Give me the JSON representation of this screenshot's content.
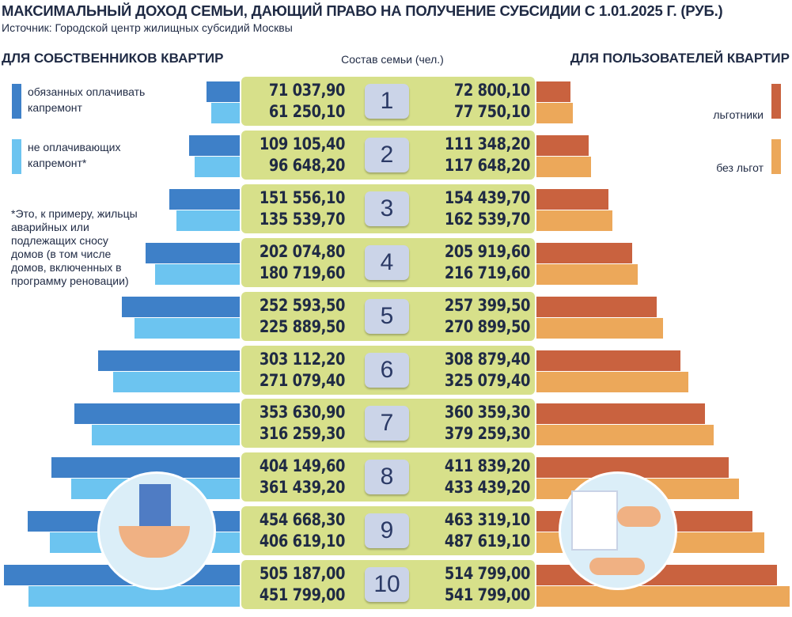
{
  "chart_data": {
    "type": "bar",
    "title": "МАКСИМАЛЬНЫЙ ДОХОД СЕМЬИ, ДАЮЩИЙ ПРАВО НА ПОЛУЧЕНИЕ СУБСИДИИ С 1.01.2025 Г. (РУБ.)",
    "subtitle": "Источник: Городской центр жилищных субсидий Москвы",
    "left_heading": "ДЛЯ СОБСТВЕННИКОВ КВАРТИР",
    "center_heading": "Состав семьи (чел.)",
    "right_heading": "ДЛЯ ПОЛЬЗОВАТЕЛЕЙ КВАРТИР",
    "note": "*Это, к примеру, жильцы аварийных или подлежащих сносу домов (в том числе домов, включенных в программу реновации)",
    "categories": [
      "1",
      "2",
      "3",
      "4",
      "5",
      "6",
      "7",
      "8",
      "9",
      "10"
    ],
    "series": [
      {
        "name": "обязанных оплачивать капремонт",
        "color": "#3e80c8",
        "side": "left",
        "values": [
          71037.9,
          109105.4,
          151556.1,
          202074.8,
          252593.5,
          303112.2,
          353630.9,
          404149.6,
          454668.3,
          505187.0
        ],
        "value_labels": [
          "71 037,90",
          "109 105,40",
          "151 556,10",
          "202 074,80",
          "252 593,50",
          "303 112,20",
          "353 630,90",
          "404 149,60",
          "454 668,30",
          "505 187,00"
        ]
      },
      {
        "name": "не оплачивающих капремонт*",
        "color": "#6cc4f0",
        "side": "left",
        "values": [
          61250.1,
          96648.2,
          135539.7,
          180719.6,
          225889.5,
          271079.4,
          316259.3,
          361439.2,
          406619.1,
          451799.0
        ],
        "value_labels": [
          "61 250,10",
          "96 648,20",
          "135 539,70",
          "180 719,60",
          "225 889,50",
          "271 079,40",
          "316 259,30",
          "361 439,20",
          "406 619,10",
          "451 799,00"
        ]
      },
      {
        "name": "льготники",
        "color": "#c9623f",
        "side": "right",
        "values": [
          72800.1,
          111348.2,
          154439.7,
          205919.6,
          257399.5,
          308879.4,
          360359.3,
          411839.2,
          463319.1,
          514799.0
        ],
        "value_labels": [
          "72 800,10",
          "111 348,20",
          "154 439,70",
          "205 919,60",
          "257 399,50",
          "308 879,40",
          "360 359,30",
          "411 839,20",
          "463 319,10",
          "514 799,00"
        ]
      },
      {
        "name": "без льгот",
        "color": "#eca85a",
        "side": "right",
        "values": [
          77750.1,
          117648.2,
          162539.7,
          216719.6,
          270899.5,
          325079.4,
          379259.3,
          433439.2,
          487619.1,
          541799.0
        ],
        "value_labels": [
          "77 750,10",
          "117 648,20",
          "162 539,70",
          "216 719,60",
          "270 899,50",
          "325 079,40",
          "379 259,30",
          "433 439,20",
          "487 619,10",
          "541 799,00"
        ]
      }
    ]
  }
}
